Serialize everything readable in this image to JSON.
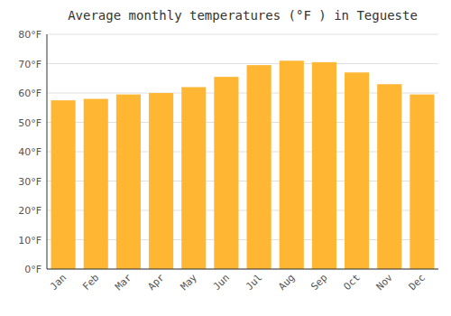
{
  "chart_data": {
    "type": "bar",
    "title": "Average monthly temperatures (°F ) in Tegueste",
    "categories": [
      "Jan",
      "Feb",
      "Mar",
      "Apr",
      "May",
      "Jun",
      "Jul",
      "Aug",
      "Sep",
      "Oct",
      "Nov",
      "Dec"
    ],
    "values": [
      57.5,
      58,
      59.5,
      60,
      62,
      65.5,
      69.5,
      71,
      70.5,
      67,
      63,
      59.5
    ],
    "color": "#FFB733",
    "ylim": [
      0,
      80
    ],
    "yticks": [
      {
        "value": 0,
        "label": "0°F"
      },
      {
        "value": 10,
        "label": "10°F"
      },
      {
        "value": 20,
        "label": "20°F"
      },
      {
        "value": 30,
        "label": "30°F"
      },
      {
        "value": 40,
        "label": "40°F"
      },
      {
        "value": 50,
        "label": "50°F"
      },
      {
        "value": 60,
        "label": "60°F"
      },
      {
        "value": 70,
        "label": "70°F"
      },
      {
        "value": 80,
        "label": "80°F"
      }
    ],
    "grid": true
  }
}
